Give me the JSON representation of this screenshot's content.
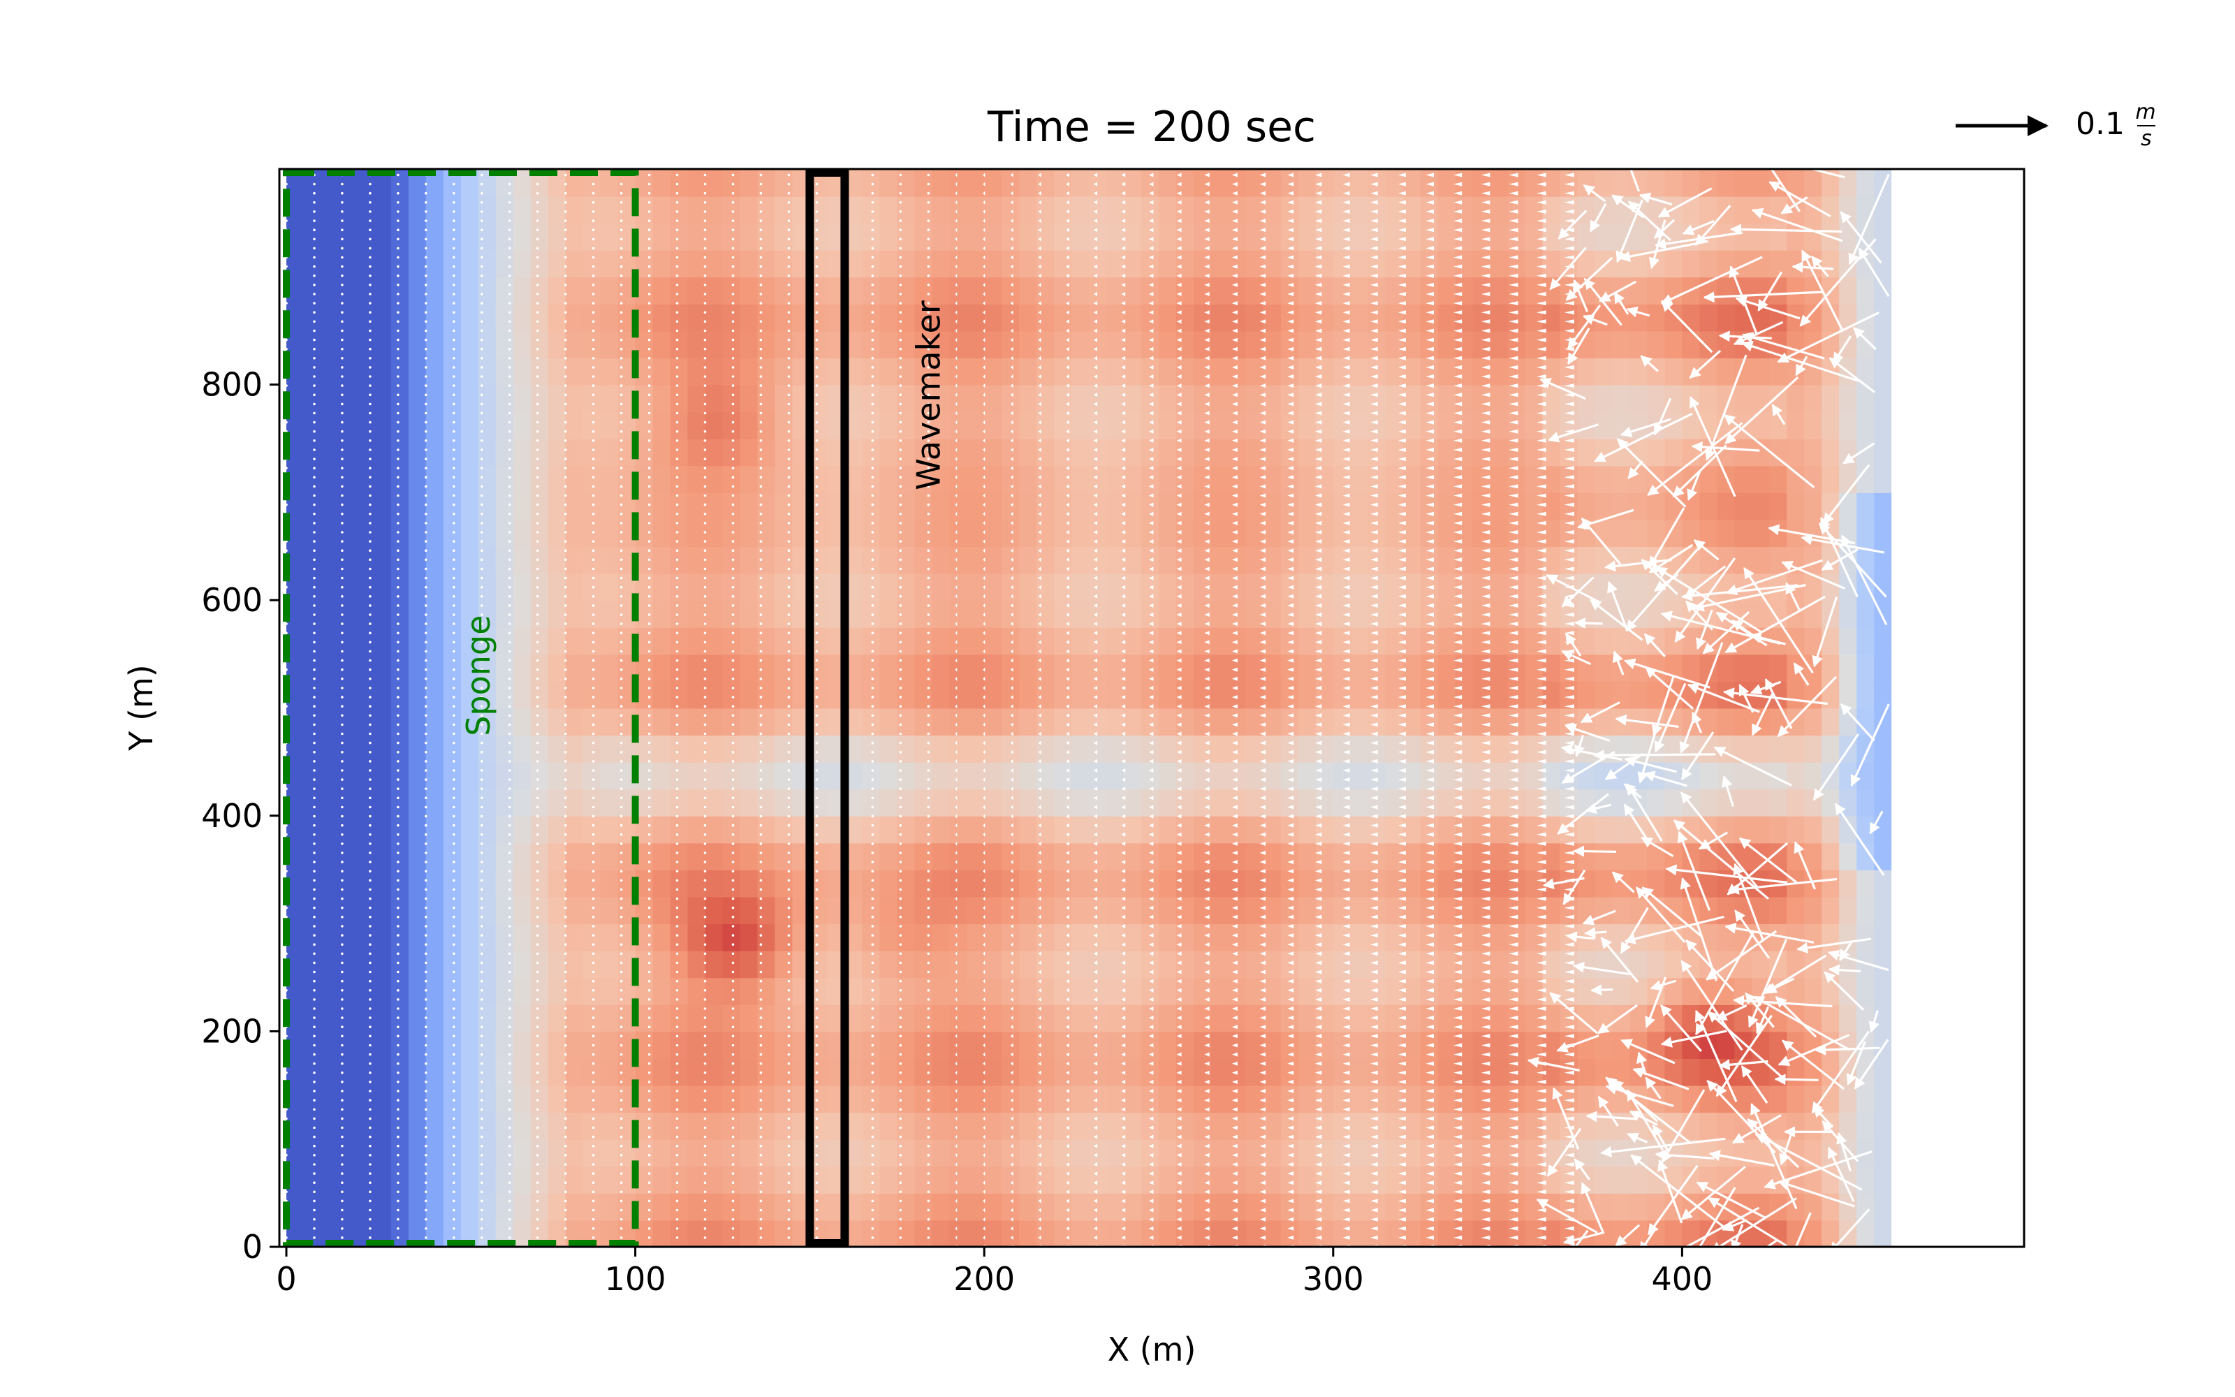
{
  "chart_data": {
    "type": "heatmap",
    "title": "Time = 200 sec",
    "xlabel": "X (m)",
    "ylabel": "Y (m)",
    "xlim": [
      -2,
      498
    ],
    "ylim": [
      0,
      1000
    ],
    "x_ticks": [
      0,
      100,
      200,
      300,
      400
    ],
    "y_ticks": [
      0,
      200,
      400,
      600,
      800
    ],
    "colormap": "coolwarm",
    "field_extent_x": [
      0,
      460
    ],
    "field_extent_y": [
      0,
      1000
    ],
    "quiver_key": {
      "prefix": "0.1",
      "unit_numerator": "m",
      "unit_denominator": "s",
      "value": 0.1,
      "color": "#000000"
    },
    "regions": [
      {
        "name": "Sponge",
        "x": [
          0,
          100
        ],
        "y": [
          0,
          1000
        ],
        "style": "dashed",
        "color": "#008000"
      },
      {
        "name": "Wavemaker",
        "x": [
          150,
          160
        ],
        "y": [
          0,
          1000
        ],
        "style": "solid",
        "color": "#000000"
      }
    ],
    "annotations": [
      {
        "text": "Sponge",
        "x": 55,
        "y": 530,
        "rotation": -90,
        "color": "#008000"
      },
      {
        "text": "Wavemaker",
        "x": 184,
        "y": 790,
        "rotation": -90,
        "color": "#000000"
      }
    ],
    "vector_color": "#ffffff"
  }
}
